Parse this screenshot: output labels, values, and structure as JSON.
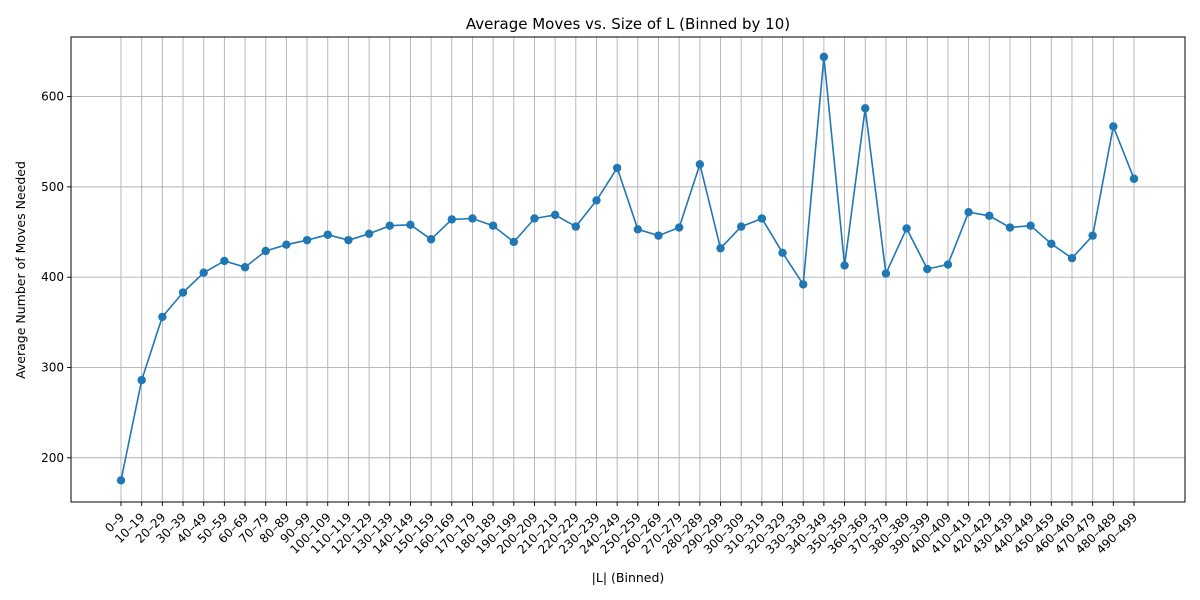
{
  "chart_data": {
    "type": "line",
    "title": "Average Moves vs. Size of L (Binned by 10)",
    "xlabel": "|L| (Binned)",
    "ylabel": "Average Number of Moves Needed",
    "categories": [
      "0–9",
      "10–19",
      "20–29",
      "30–39",
      "40–49",
      "50–59",
      "60–69",
      "70–79",
      "80–89",
      "90–99",
      "100–109",
      "110–119",
      "120–129",
      "130–139",
      "140–149",
      "150–159",
      "160–169",
      "170–179",
      "180–189",
      "190–199",
      "200–209",
      "210–219",
      "220–229",
      "230–239",
      "240–249",
      "250–259",
      "260–269",
      "270–279",
      "280–289",
      "290–299",
      "300–309",
      "310–319",
      "320–329",
      "330–339",
      "340–349",
      "350–359",
      "360–369",
      "370–379",
      "380–389",
      "390–399",
      "400–409",
      "410–419",
      "420–429",
      "430–439",
      "440–449",
      "450–459",
      "460–469",
      "470–479",
      "480–489",
      "490–499"
    ],
    "series": [
      {
        "values": [
          175,
          286,
          356,
          383,
          405,
          418,
          411,
          429,
          436,
          441,
          447,
          441,
          448,
          457,
          458,
          442,
          464,
          465,
          457,
          439,
          465,
          469,
          456,
          485,
          521,
          453,
          446,
          455,
          525,
          432,
          456,
          465,
          427,
          392,
          644,
          413,
          587,
          404,
          454,
          409,
          414,
          472,
          468,
          455,
          457,
          437,
          421,
          446,
          567,
          509
        ],
        "color": "#1f77b4",
        "marker": "circle"
      }
    ],
    "yticks": [
      200,
      300,
      400,
      500,
      600
    ],
    "ylim": [
      151,
      666
    ],
    "grid": true
  }
}
